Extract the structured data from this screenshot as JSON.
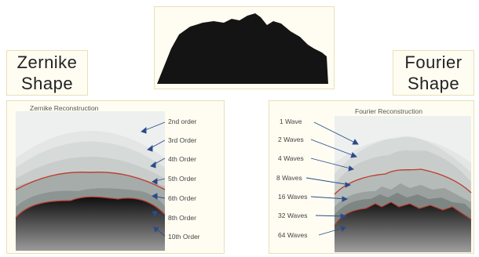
{
  "top": {},
  "zernike": {
    "label_line1": "Zernike",
    "label_line2": "Shape",
    "panel_title": "Zernike Reconstruction",
    "orders": [
      "2nd order",
      "3rd Order",
      "4th Order",
      "5th Order",
      "6th Order",
      "8th Order",
      "10th Order"
    ]
  },
  "fourier": {
    "label_line1": "Fourier",
    "label_line2": "Shape",
    "panel_title": "Fourier Reconstruction",
    "waves": [
      "1 Wave",
      "2 Waves",
      "4 Waves",
      "8 Waves",
      "16 Waves",
      "32 Waves",
      "64 Waves"
    ]
  },
  "colors": {
    "frame_border": "#e8e0b8",
    "frame_fill": "#fffdf2",
    "shape_fill": "#141414",
    "highlight_curve": "#c0392b",
    "arrow": "#2c4a8a"
  }
}
